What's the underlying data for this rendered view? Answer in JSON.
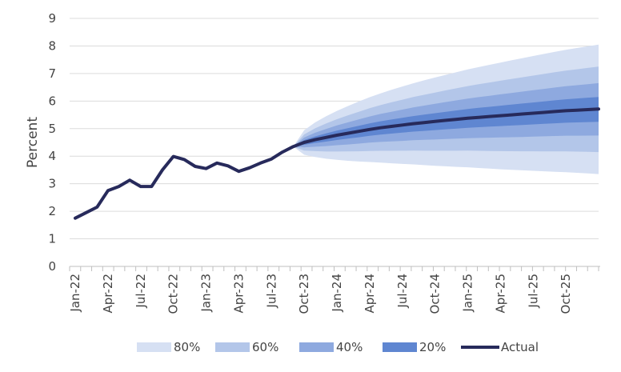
{
  "chart_data": {
    "type": "area",
    "title": "",
    "xlabel": "",
    "ylabel": "Percent",
    "ylim": [
      0,
      9
    ],
    "yticks": [
      "0",
      "1",
      "2",
      "3",
      "4",
      "5",
      "6",
      "7",
      "8",
      "9"
    ],
    "xtick_labels": [
      "Jan-22",
      "Apr-22",
      "Jul-22",
      "Oct-22",
      "Jan-23",
      "Apr-23",
      "Jul-23",
      "Oct-23",
      "Jan-24",
      "Apr-24",
      "Jul-24",
      "Oct-24",
      "Jan-25",
      "Apr-25",
      "Jul-25",
      "Oct-25"
    ],
    "months": 48,
    "actual": {
      "name": "Actual",
      "color": "#272a5b",
      "values": [
        1.75,
        1.95,
        2.15,
        2.75,
        2.9,
        3.13,
        2.9,
        2.9,
        3.5,
        3.99,
        3.88,
        3.63,
        3.55,
        3.75,
        3.65,
        3.45,
        3.58,
        3.75,
        3.9,
        4.15,
        4.35,
        4.5,
        4.6,
        4.68,
        4.76,
        4.83,
        4.9,
        4.97,
        5.03,
        5.08,
        5.13,
        5.18,
        5.22,
        5.26,
        5.3,
        5.34,
        5.38,
        5.41,
        5.44,
        5.47,
        5.5,
        5.53,
        5.56,
        5.59,
        5.62,
        5.65,
        5.67,
        5.69,
        5.71
      ]
    },
    "fan_start_index": 20,
    "fan_end_index": 48,
    "bands": [
      {
        "name": "80%",
        "color": "#d6e0f3",
        "upper_end": 8.05,
        "lower_end": 3.35
      },
      {
        "name": "60%",
        "color": "#b3c6e9",
        "upper_end": 7.25,
        "lower_end": 4.15
      },
      {
        "name": "40%",
        "color": "#8ea9df",
        "upper_end": 6.65,
        "lower_end": 4.75
      },
      {
        "name": "20%",
        "color": "#5f86d1",
        "upper_end": 6.15,
        "lower_end": 5.25
      }
    ],
    "legend": [
      "80%",
      "60%",
      "40%",
      "20%",
      "Actual"
    ],
    "legend_position": "bottom",
    "grid": true
  }
}
